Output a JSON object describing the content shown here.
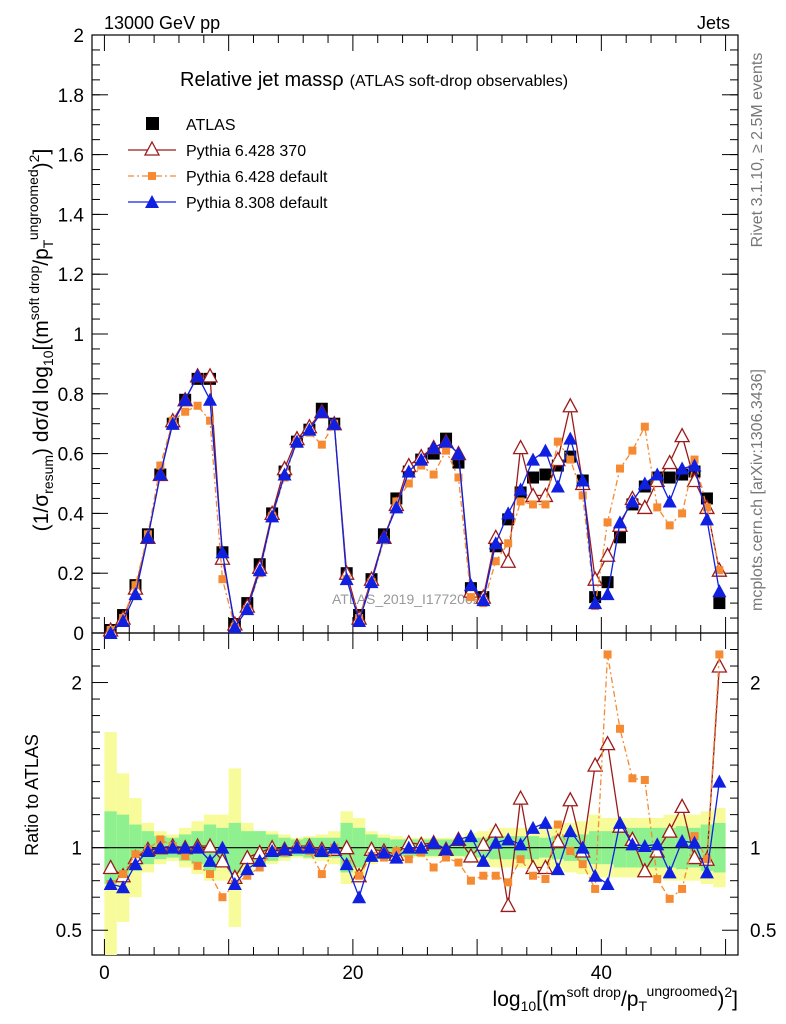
{
  "header": {
    "left": "13000 GeV pp",
    "right": "Jets",
    "title_main": "Relative jet massρ",
    "title_sub": "(ATLAS soft-drop observables)"
  },
  "side_labels": {
    "rivet": "Rivet 3.1.10, ≥ 2.5M events",
    "mcplots": "mcplots.cern.ch [arXiv:1306.3436]"
  },
  "watermark": "ATLAS_2019_I1772062",
  "colors": {
    "atlas": "#000000",
    "p6_370": "#9b1b1b",
    "p6_def": "#f58a32",
    "p8": "#1020e0",
    "band_inner": "#8ef08e",
    "band_outer": "#f8fb9a"
  },
  "chart_data": [
    {
      "type": "scatter",
      "panel": "main",
      "ylabel": "(1/σresum) dσ/d log10[(msoft drop/pTungroomed)2]",
      "xlabel": "log10[(msoft drop/pTungroomed)2]",
      "xlim": [
        -1,
        51
      ],
      "ylim": [
        0,
        2
      ],
      "yticks": [
        0,
        0.2,
        0.4,
        0.6,
        0.8,
        1,
        1.2,
        1.4,
        1.6,
        1.8,
        2
      ],
      "xticks": [
        0,
        20,
        40
      ],
      "legend_position": "top-left",
      "x": [
        0.5,
        1.5,
        2.5,
        3.5,
        4.5,
        5.5,
        6.5,
        7.5,
        8.5,
        9.5,
        10.5,
        11.5,
        12.5,
        13.5,
        14.5,
        15.5,
        16.5,
        17.5,
        18.5,
        19.5,
        20.5,
        21.5,
        22.5,
        23.5,
        24.5,
        25.5,
        26.5,
        27.5,
        28.5,
        29.5,
        30.5,
        31.5,
        32.5,
        33.5,
        34.5,
        35.5,
        36.5,
        37.5,
        38.5,
        39.5,
        40.5,
        41.5,
        42.5,
        43.5,
        44.5,
        45.5,
        46.5,
        47.5,
        48.5,
        49.5
      ],
      "series": [
        {
          "name": "ATLAS",
          "marker": "square",
          "values": [
            0.01,
            0.06,
            0.16,
            0.33,
            0.53,
            0.7,
            0.78,
            0.85,
            0.85,
            0.27,
            0.03,
            0.1,
            0.23,
            0.4,
            0.54,
            0.64,
            0.68,
            0.75,
            0.7,
            0.2,
            0.06,
            0.18,
            0.33,
            0.45,
            0.54,
            0.58,
            0.6,
            0.65,
            0.57,
            0.15,
            0.12,
            0.29,
            0.38,
            0.47,
            0.52,
            0.53,
            0.56,
            0.59,
            0.51,
            0.12,
            0.17,
            0.32,
            0.43,
            0.49,
            0.52,
            0.52,
            0.53,
            0.54,
            0.45,
            0.1
          ]
        },
        {
          "name": "Pythia 6.428 370",
          "marker": "open-triangle",
          "values": [
            0.01,
            0.05,
            0.15,
            0.32,
            0.53,
            0.71,
            0.78,
            0.86,
            0.86,
            0.25,
            0.03,
            0.09,
            0.22,
            0.4,
            0.55,
            0.65,
            0.69,
            0.74,
            0.7,
            0.2,
            0.05,
            0.18,
            0.32,
            0.43,
            0.56,
            0.59,
            0.62,
            0.64,
            0.6,
            0.14,
            0.12,
            0.32,
            0.24,
            0.62,
            0.46,
            0.46,
            0.58,
            0.76,
            0.5,
            0.18,
            0.26,
            0.36,
            0.45,
            0.42,
            0.51,
            0.57,
            0.66,
            0.51,
            0.42,
            0.21
          ]
        },
        {
          "name": "Pythia 6.428 default",
          "marker": "square-small",
          "values": [
            0.01,
            0.05,
            0.16,
            0.33,
            0.56,
            0.71,
            0.74,
            0.76,
            0.71,
            0.18,
            0.02,
            0.08,
            0.2,
            0.39,
            0.52,
            0.64,
            0.67,
            0.63,
            0.7,
            0.18,
            0.05,
            0.17,
            0.31,
            0.44,
            0.5,
            0.56,
            0.53,
            0.61,
            0.52,
            0.12,
            0.1,
            0.24,
            0.3,
            0.44,
            0.43,
            0.43,
            0.64,
            0.58,
            0.46,
            0.09,
            0.37,
            0.55,
            0.61,
            0.69,
            0.42,
            0.36,
            0.4,
            0.58,
            0.42,
            0.21
          ]
        },
        {
          "name": "Pythia 8.308 default",
          "marker": "triangle",
          "values": [
            0.0,
            0.04,
            0.13,
            0.32,
            0.53,
            0.7,
            0.78,
            0.86,
            0.78,
            0.27,
            0.02,
            0.08,
            0.21,
            0.39,
            0.53,
            0.64,
            0.68,
            0.74,
            0.7,
            0.18,
            0.04,
            0.17,
            0.32,
            0.42,
            0.54,
            0.58,
            0.62,
            0.64,
            0.6,
            0.16,
            0.11,
            0.3,
            0.4,
            0.48,
            0.58,
            0.61,
            0.49,
            0.65,
            0.51,
            0.1,
            0.13,
            0.37,
            0.44,
            0.5,
            0.53,
            0.44,
            0.55,
            0.56,
            0.38,
            0.14
          ]
        }
      ]
    },
    {
      "type": "scatter",
      "panel": "ratio",
      "ylabel": "Ratio to ATLAS",
      "ylim": [
        0.35,
        2.3
      ],
      "yticks": [
        0.5,
        1,
        2
      ],
      "x": [
        0.5,
        1.5,
        2.5,
        3.5,
        4.5,
        5.5,
        6.5,
        7.5,
        8.5,
        9.5,
        10.5,
        11.5,
        12.5,
        13.5,
        14.5,
        15.5,
        16.5,
        17.5,
        18.5,
        19.5,
        20.5,
        21.5,
        22.5,
        23.5,
        24.5,
        25.5,
        26.5,
        27.5,
        28.5,
        29.5,
        30.5,
        31.5,
        32.5,
        33.5,
        34.5,
        35.5,
        36.5,
        37.5,
        38.5,
        39.5,
        40.5,
        41.5,
        42.5,
        43.5,
        44.5,
        45.5,
        46.5,
        47.5,
        48.5,
        49.5
      ],
      "band_inner": [
        0.22,
        0.2,
        0.14,
        0.1,
        0.07,
        0.06,
        0.08,
        0.1,
        0.14,
        0.12,
        0.15,
        0.1,
        0.1,
        0.08,
        0.06,
        0.05,
        0.06,
        0.06,
        0.06,
        0.15,
        0.12,
        0.08,
        0.06,
        0.05,
        0.05,
        0.05,
        0.05,
        0.05,
        0.05,
        0.06,
        0.06,
        0.07,
        0.07,
        0.07,
        0.07,
        0.06,
        0.07,
        0.08,
        0.08,
        0.1,
        0.1,
        0.12,
        0.12,
        0.12,
        0.12,
        0.12,
        0.13,
        0.12,
        0.14,
        0.15
      ],
      "band_outer": [
        0.7,
        0.45,
        0.3,
        0.15,
        0.1,
        0.08,
        0.12,
        0.16,
        0.2,
        0.2,
        0.48,
        0.15,
        0.1,
        0.1,
        0.08,
        0.06,
        0.07,
        0.08,
        0.1,
        0.22,
        0.18,
        0.1,
        0.08,
        0.07,
        0.06,
        0.06,
        0.06,
        0.06,
        0.06,
        0.09,
        0.1,
        0.12,
        0.12,
        0.12,
        0.12,
        0.12,
        0.13,
        0.15,
        0.16,
        0.2,
        0.18,
        0.18,
        0.18,
        0.18,
        0.18,
        0.2,
        0.2,
        0.2,
        0.22,
        0.24
      ],
      "series": [
        {
          "name": "Pythia 6.428 370",
          "marker": "open-triangle",
          "values": [
            0.88,
            0.83,
            0.94,
            0.99,
            1.0,
            1.01,
            1.0,
            1.01,
            1.01,
            0.92,
            0.82,
            0.94,
            0.97,
            1.0,
            0.99,
            1.01,
            1.01,
            0.99,
            0.99,
            1.0,
            0.83,
            0.99,
            0.98,
            0.96,
            1.03,
            1.02,
            1.03,
            0.99,
            1.05,
            0.95,
            1.02,
            1.1,
            0.65,
            1.3,
            0.88,
            0.88,
            1.04,
            1.29,
            0.98,
            1.5,
            1.63,
            1.13,
            1.05,
            0.86,
            0.98,
            1.1,
            1.25,
            0.94,
            0.93,
            2.1
          ]
        },
        {
          "name": "Pythia 6.428 default",
          "marker": "square-small",
          "values": [
            0.78,
            0.84,
            0.96,
            0.99,
            1.05,
            1.01,
            0.95,
            0.89,
            0.84,
            0.7,
            0.78,
            0.83,
            0.88,
            0.98,
            0.97,
            1.0,
            0.98,
            0.84,
            1.0,
            0.9,
            0.83,
            0.95,
            0.94,
            0.98,
            0.93,
            0.97,
            0.88,
            0.94,
            0.91,
            0.8,
            0.83,
            0.83,
            0.79,
            0.93,
            0.83,
            0.81,
            1.14,
            0.98,
            0.9,
            0.75,
            2.17,
            1.72,
            1.42,
            1.41,
            0.81,
            0.69,
            0.75,
            1.07,
            0.93,
            2.17
          ]
        },
        {
          "name": "Pythia 8.308 default",
          "marker": "triangle",
          "values": [
            0.78,
            0.76,
            0.9,
            0.98,
            1.0,
            1.0,
            1.0,
            1.0,
            0.92,
            1.0,
            0.78,
            0.87,
            0.92,
            0.98,
            0.99,
            1.0,
            1.0,
            0.98,
            1.0,
            0.9,
            0.7,
            0.95,
            0.97,
            0.94,
            1.0,
            1.0,
            1.03,
            0.99,
            1.05,
            1.07,
            0.92,
            1.03,
            1.05,
            1.02,
            1.12,
            1.15,
            0.87,
            1.1,
            1.0,
            0.83,
            0.78,
            1.15,
            1.02,
            1.01,
            1.02,
            0.85,
            1.04,
            1.03,
            0.85,
            1.4
          ]
        }
      ]
    }
  ]
}
